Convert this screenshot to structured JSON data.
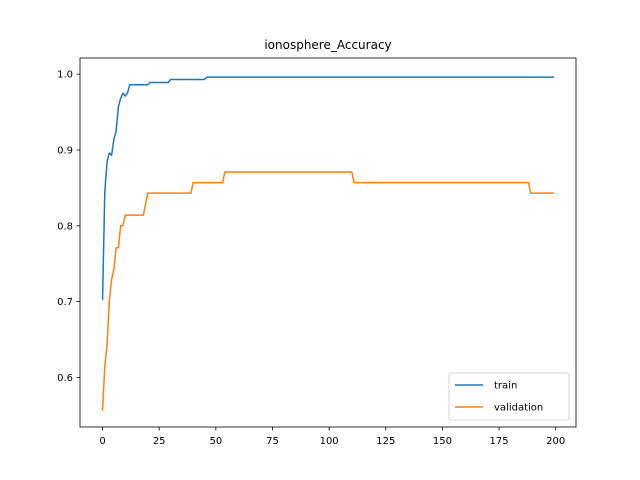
{
  "chart_data": {
    "type": "line",
    "title": "ionosphere_Accuracy",
    "xlabel": "",
    "ylabel": "",
    "xlim": [
      -9.95,
      208.95
    ],
    "ylim": [
      0.5346,
      1.0213
    ],
    "xticks": [
      0,
      25,
      50,
      75,
      100,
      125,
      150,
      175,
      200
    ],
    "xtick_labels": [
      "0",
      "25",
      "50",
      "75",
      "100",
      "125",
      "150",
      "175",
      "200"
    ],
    "yticks": [
      0.6,
      0.7,
      0.8,
      0.9,
      1.0
    ],
    "ytick_labels": [
      "0.6",
      "0.7",
      "0.8",
      "0.9",
      "1.0"
    ],
    "grid": false,
    "legend_position": "lower-right",
    "series": [
      {
        "name": "train",
        "color": "#1f77b4",
        "x": [
          0,
          1,
          2,
          3,
          4,
          5,
          6,
          7,
          8,
          9,
          10,
          11,
          12,
          13,
          15,
          20,
          21,
          25,
          29,
          30,
          45,
          46,
          60,
          100,
          150,
          199
        ],
        "y": [
          0.703,
          0.845,
          0.885,
          0.896,
          0.893,
          0.914,
          0.925,
          0.957,
          0.968,
          0.975,
          0.971,
          0.975,
          0.986,
          0.986,
          0.986,
          0.986,
          0.989,
          0.989,
          0.989,
          0.993,
          0.993,
          0.996,
          0.996,
          0.996,
          0.996,
          0.996
        ]
      },
      {
        "name": "validation",
        "color": "#ff7f0e",
        "x": [
          0,
          1,
          2,
          3,
          4,
          5,
          6,
          7,
          8,
          9,
          10,
          11,
          15,
          18,
          19,
          20,
          21,
          39,
          40,
          53,
          54,
          109,
          110,
          111,
          188,
          189,
          199
        ],
        "y": [
          0.557,
          0.614,
          0.643,
          0.7,
          0.729,
          0.743,
          0.771,
          0.771,
          0.8,
          0.8,
          0.814,
          0.814,
          0.814,
          0.814,
          0.829,
          0.843,
          0.843,
          0.843,
          0.857,
          0.857,
          0.871,
          0.871,
          0.871,
          0.857,
          0.857,
          0.843,
          0.843
        ]
      }
    ]
  }
}
